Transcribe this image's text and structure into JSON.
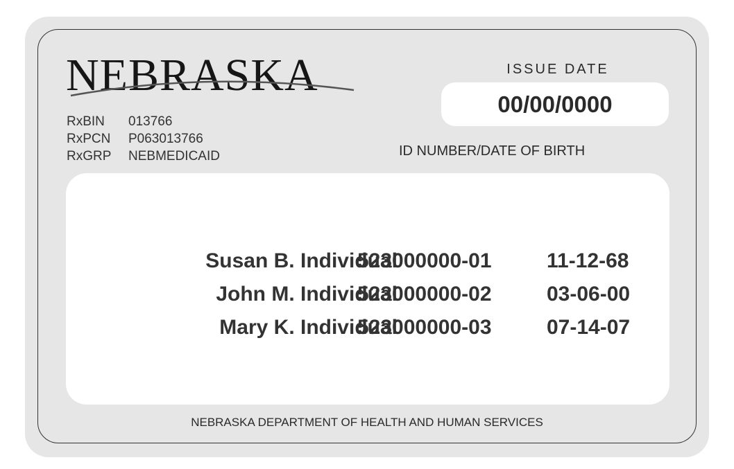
{
  "card": {
    "logo_text": "NEBRASKA",
    "rx": [
      {
        "label": "RxBIN",
        "value": "013766"
      },
      {
        "label": "RxPCN",
        "value": "P063013766"
      },
      {
        "label": "RxGRP",
        "value": "NEBMEDICAID"
      }
    ],
    "issue_date_label": "ISSUE DATE",
    "issue_date": "00/00/0000",
    "id_dob_label": "ID NUMBER/DATE OF BIRTH",
    "members": [
      {
        "name": "Susan B. Individual",
        "id": "523000000-01",
        "dob": "11-12-68"
      },
      {
        "name": "John M. Individual",
        "id": "523000000-02",
        "dob": "03-06-00"
      },
      {
        "name": "Mary K. Individual",
        "id": "523000000-03",
        "dob": "07-14-07"
      }
    ],
    "footer": "NEBRASKA DEPARTMENT OF HEALTH AND HUMAN SERVICES"
  }
}
